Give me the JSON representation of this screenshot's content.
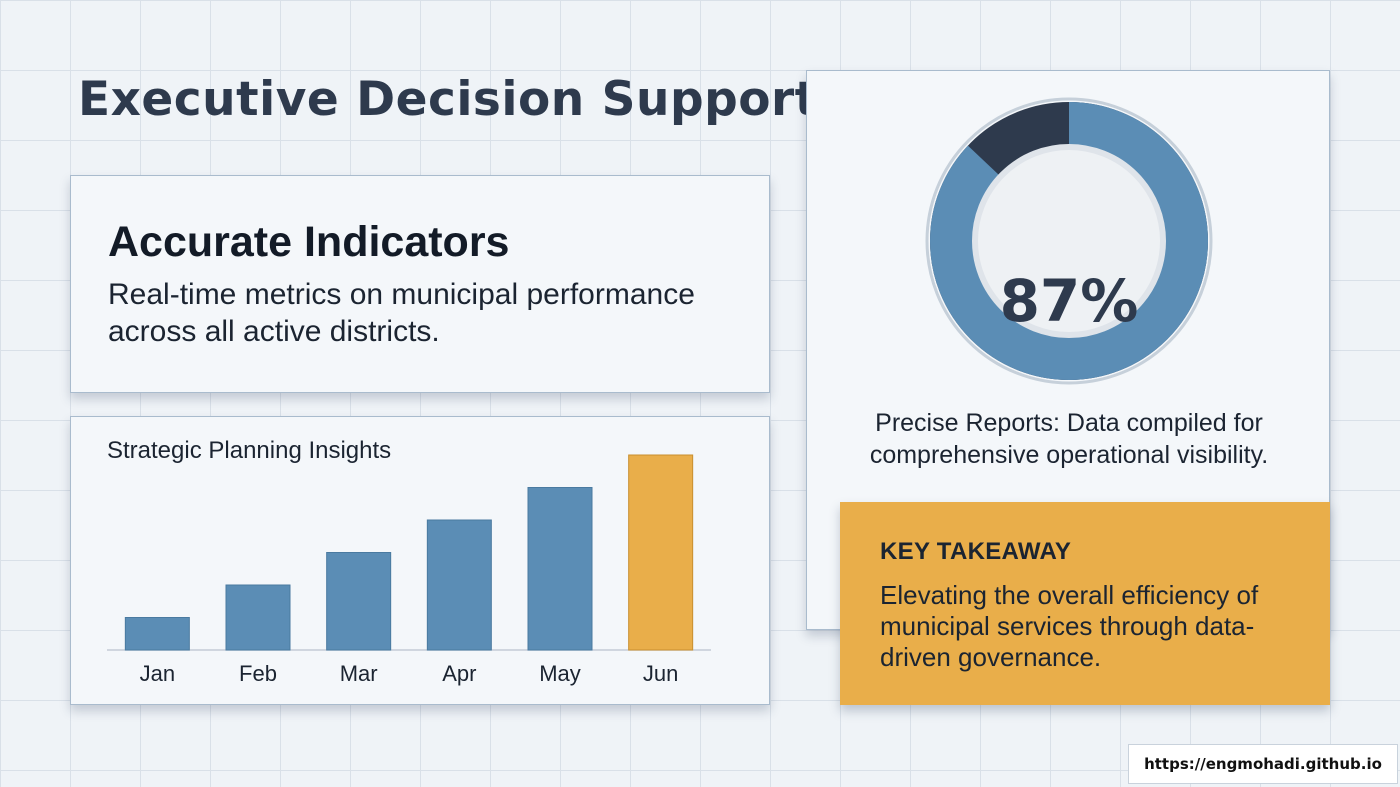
{
  "page": {
    "title": "Executive Decision Support"
  },
  "indicators": {
    "heading": "Accurate Indicators",
    "body": "Real-time metrics on municipal performance across all active districts."
  },
  "planning": {
    "title": "Strategic Planning Insights"
  },
  "report": {
    "percent_label": "87%",
    "percent_value": 87,
    "text": "Precise Reports: Data compiled for comprehensive operational visibility."
  },
  "takeaway": {
    "label": "KEY TAKEAWAY",
    "body": "Elevating the overall efficiency of municipal services through data-driven governance."
  },
  "watermark": {
    "url": "https://engmohadi.github.io"
  },
  "colors": {
    "primary_blue": "#5b8db5",
    "dark_navy": "#2e3a4d",
    "highlight_orange": "#e9ae4a",
    "ring_track": "#dfe4ea"
  },
  "chart_data": {
    "type": "bar",
    "categories": [
      "Jan",
      "Feb",
      "Mar",
      "Apr",
      "May",
      "Jun"
    ],
    "values": [
      1,
      2,
      3,
      4,
      5,
      6
    ],
    "highlight_index": 5,
    "title": "Strategic Planning Insights",
    "xlabel": "",
    "ylabel": "",
    "ylim": [
      0,
      6
    ],
    "grid": false
  }
}
